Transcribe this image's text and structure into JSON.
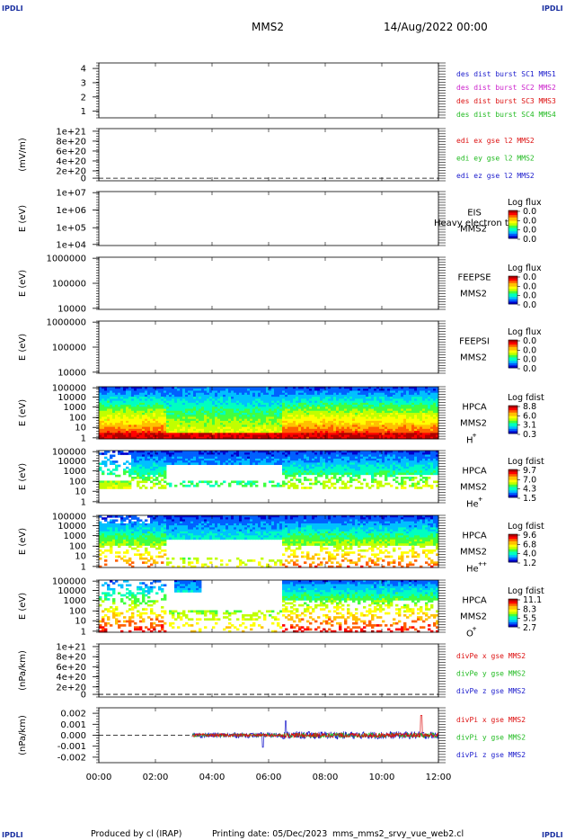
{
  "header": {
    "corner_label": "IPDLI",
    "spacecraft": "MMS2",
    "date": "14/Aug/2022 00:00"
  },
  "footer": {
    "produced_by": "Produced by cl (IRAP)",
    "printing_date": "Printing date: 05/Dec/2023",
    "filename": "mms_mms2_srvy_vue_web2.cl"
  },
  "chart_data": [
    {
      "id": "des-dist",
      "type": "line",
      "yticks": [
        "4",
        "3",
        "2",
        "1"
      ],
      "ylim": [
        0.5,
        4.5
      ],
      "legend": [
        {
          "text": "des dist burst SC1 MMS1",
          "color": "#1a1acc"
        },
        {
          "text": "des dist burst SC2 MMS2",
          "color": "#cc22cc"
        },
        {
          "text": "des dist burst SC3 MMS3",
          "color": "#dd1111"
        },
        {
          "text": "des dist burst SC4 MMS4",
          "color": "#22bb22"
        }
      ]
    },
    {
      "id": "edi-e",
      "type": "line",
      "ylabel": "(mV/m)",
      "yticks": [
        "1e+21",
        "8e+20",
        "6e+20",
        "4e+20",
        "2e+20",
        "0"
      ],
      "legend": [
        {
          "text": "edi ex gse l2 MMS2",
          "color": "#dd1111"
        },
        {
          "text": "edi ey gse l2 MMS2",
          "color": "#22bb22"
        },
        {
          "text": "edi ez gse l2 MMS2",
          "color": "#1a1acc"
        }
      ]
    },
    {
      "id": "eis",
      "type": "heatmap",
      "ylabel": "E (eV)",
      "yticks": [
        "1e+07",
        "1e+06",
        "1e+05",
        "1e+04"
      ],
      "instrument": [
        "EIS",
        "MMS2"
      ],
      "overlay_text": "Heavy electron to",
      "colorbar": {
        "title": "Log flux",
        "values": [
          "0.0",
          "0.0",
          "0.0",
          "0.0"
        ]
      }
    },
    {
      "id": "feepse",
      "type": "heatmap",
      "ylabel": "E (eV)",
      "yticks": [
        "1000000",
        "100000",
        "10000"
      ],
      "instrument": [
        "FEEPSE",
        "MMS2"
      ],
      "colorbar": {
        "title": "Log flux",
        "values": [
          "0.0",
          "0.0",
          "0.0",
          "0.0"
        ]
      }
    },
    {
      "id": "feepsi",
      "type": "heatmap",
      "ylabel": "E (eV)",
      "yticks": [
        "1000000",
        "100000",
        "10000"
      ],
      "instrument": [
        "FEEPSI",
        "MMS2"
      ],
      "colorbar": {
        "title": "Log flux",
        "values": [
          "0.0",
          "0.0",
          "0.0",
          "0.0"
        ]
      }
    },
    {
      "id": "hpca-h",
      "type": "heatmap",
      "ylabel": "E (eV)",
      "yticks": [
        "100000",
        "10000",
        "1000",
        "100",
        "10",
        "1"
      ],
      "instrument": [
        "HPCA",
        "MMS2"
      ],
      "species": "H",
      "species_sup": "+",
      "colorbar": {
        "title": "Log fdist",
        "values": [
          "8.8",
          "6.0",
          "3.1",
          "0.3"
        ]
      }
    },
    {
      "id": "hpca-he",
      "type": "heatmap",
      "ylabel": "E (eV)",
      "yticks": [
        "100000",
        "10000",
        "1000",
        "100",
        "10",
        "1"
      ],
      "instrument": [
        "HPCA",
        "MMS2"
      ],
      "species": "He",
      "species_sup": "+",
      "colorbar": {
        "title": "Log fdist",
        "values": [
          "9.7",
          "7.0",
          "4.3",
          "1.5"
        ]
      }
    },
    {
      "id": "hpca-hepp",
      "type": "heatmap",
      "ylabel": "E (eV)",
      "yticks": [
        "100000",
        "10000",
        "1000",
        "100",
        "10",
        "1"
      ],
      "instrument": [
        "HPCA",
        "MMS2"
      ],
      "species": "He",
      "species_sup": "++",
      "colorbar": {
        "title": "Log fdist",
        "values": [
          "9.6",
          "6.8",
          "4.0",
          "1.2"
        ]
      }
    },
    {
      "id": "hpca-o",
      "type": "heatmap",
      "ylabel": "E (eV)",
      "yticks": [
        "100000",
        "10000",
        "1000",
        "100",
        "10",
        "1"
      ],
      "instrument": [
        "HPCA",
        "MMS2"
      ],
      "species": "O",
      "species_sup": "+",
      "colorbar": {
        "title": "Log fdist",
        "values": [
          "11.1",
          "8.3",
          "5.5",
          "2.7"
        ]
      }
    },
    {
      "id": "divpe",
      "type": "line",
      "ylabel": "(nPa/km)",
      "yticks": [
        "1e+21",
        "8e+20",
        "6e+20",
        "4e+20",
        "2e+20",
        "0"
      ],
      "legend": [
        {
          "text": "divPe x gse MMS2",
          "color": "#dd1111"
        },
        {
          "text": "divPe y gse MMS2",
          "color": "#22bb22"
        },
        {
          "text": "divPe z gse MMS2",
          "color": "#1a1acc"
        }
      ]
    },
    {
      "id": "divpi",
      "type": "line",
      "ylabel": "(nPa/km)",
      "yticks": [
        "0.002",
        "0.001",
        "0.000",
        "-0.001",
        "-0.002"
      ],
      "ylim": [
        -0.0025,
        0.0025
      ],
      "legend": [
        {
          "text": "divPi x gse MMS2",
          "color": "#dd1111"
        },
        {
          "text": "divPi y gse MMS2",
          "color": "#22bb22"
        },
        {
          "text": "divPi z gse MMS2",
          "color": "#1a1acc"
        }
      ]
    }
  ],
  "time_axis": {
    "ticks": [
      "00:00",
      "02:00",
      "04:00",
      "06:00",
      "08:00",
      "10:00",
      "12:00"
    ],
    "range_hours": [
      0,
      12
    ]
  }
}
